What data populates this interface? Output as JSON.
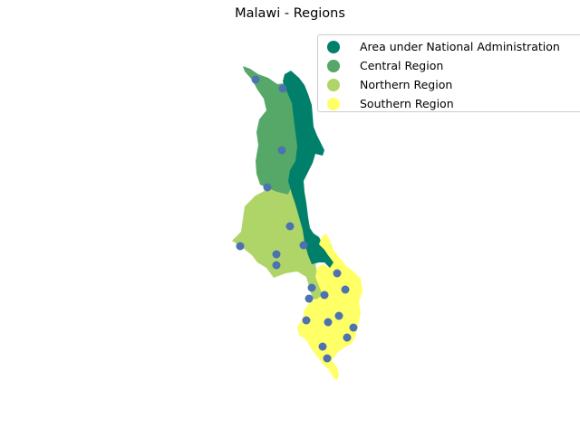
{
  "title": "Malawi - Regions",
  "legend": [
    {
      "label": "Area under National Administration",
      "color": "#00806a",
      "icon": "circle-marker"
    },
    {
      "label": "Central Region",
      "color": "#55a868",
      "icon": "circle-marker"
    },
    {
      "label": "Northern Region",
      "color": "#afd568",
      "icon": "circle-marker"
    },
    {
      "label": "Southern Region",
      "color": "#ffff66",
      "icon": "circle-marker"
    }
  ],
  "point_color": "#4c72b0",
  "point_marker": "circle"
}
